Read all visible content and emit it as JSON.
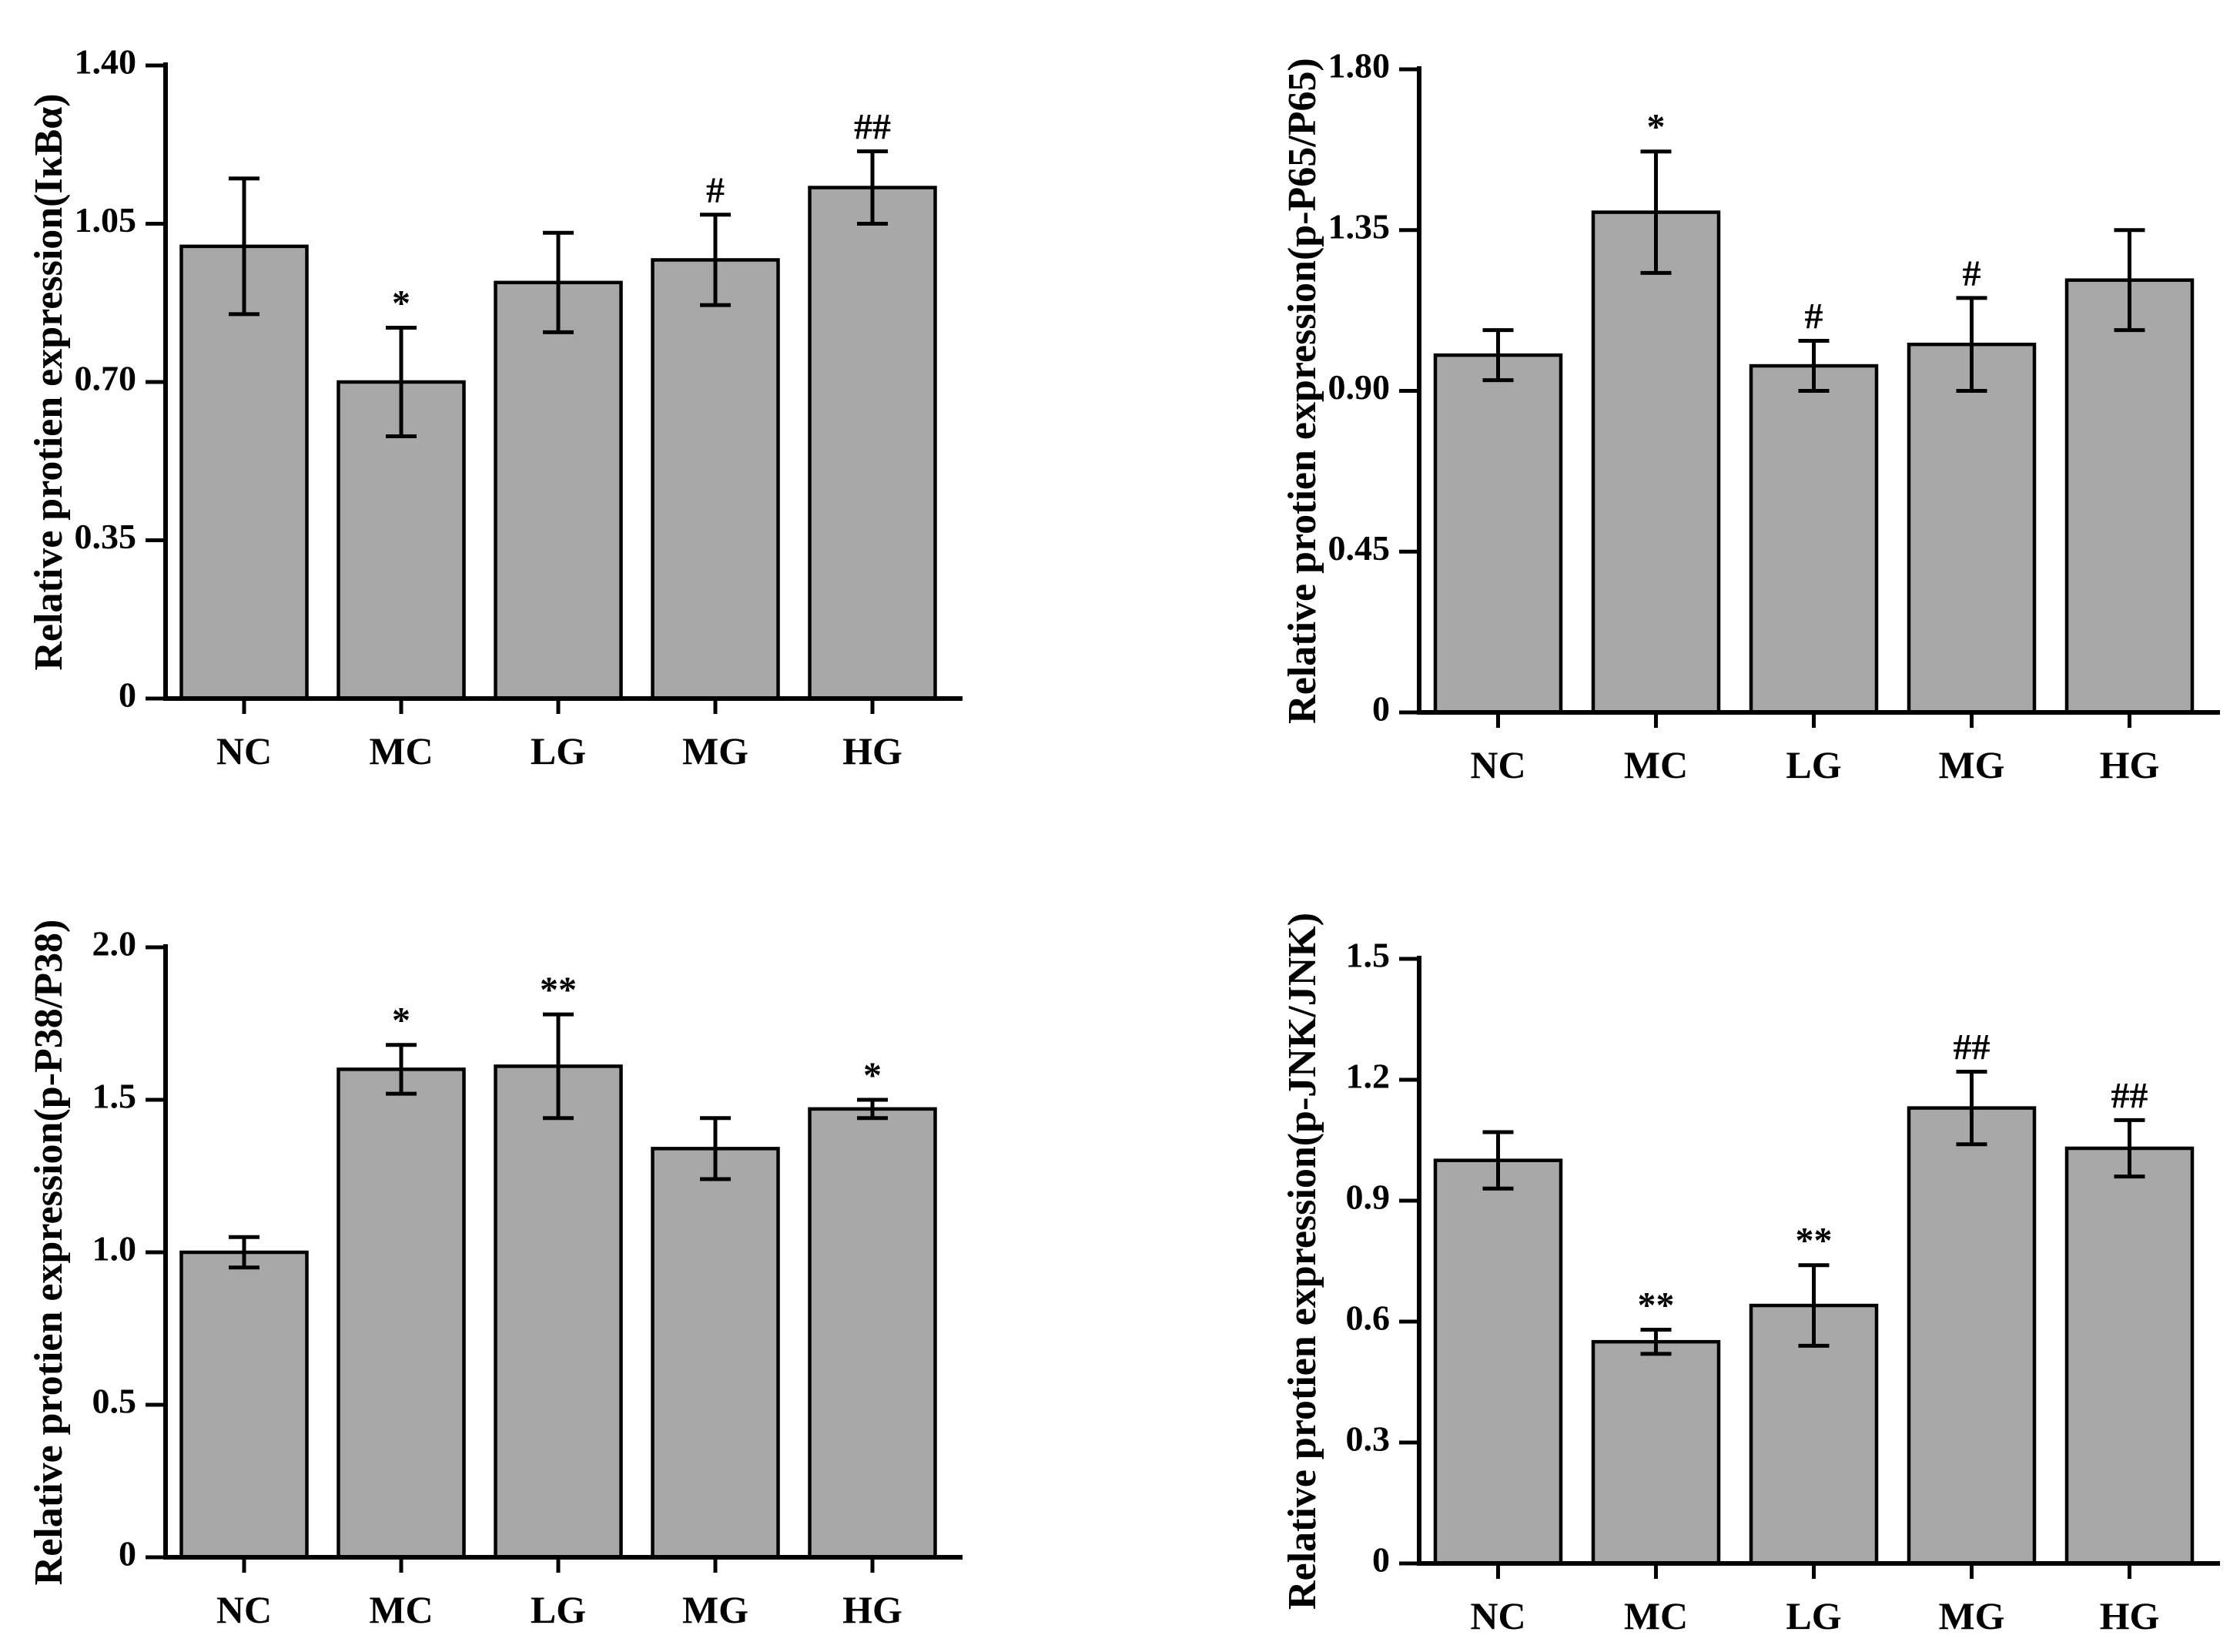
{
  "figure": {
    "background": "#ffffff",
    "bar_fill": "#a8a8a8",
    "bar_stroke": "#000000",
    "axis_color": "#000000"
  },
  "chart_data": [
    {
      "type": "bar",
      "panel_id": "ikba",
      "title": "",
      "ylabel": "Relative protien expression(IκBα)",
      "xlabel": "",
      "categories": [
        "NC",
        "MC",
        "LG",
        "MG",
        "HG"
      ],
      "values": [
        1.0,
        0.7,
        0.92,
        0.97,
        1.13
      ],
      "errors": [
        0.15,
        0.12,
        0.11,
        0.1,
        0.08
      ],
      "annotations": [
        "",
        "*",
        "",
        "#",
        "##"
      ],
      "ylim": [
        0,
        1.4
      ],
      "yticks": [
        0,
        0.35,
        0.7,
        1.05,
        1.4
      ],
      "ytick_labels": [
        "0",
        "0.35",
        "0.70",
        "1.05",
        "1.40"
      ],
      "grid": false,
      "legend": "none",
      "bar_color": "#a8a8a8"
    },
    {
      "type": "bar",
      "panel_id": "p65",
      "title": "",
      "ylabel": "Relative protien expression(p-P65/P65)",
      "xlabel": "",
      "categories": [
        "NC",
        "MC",
        "LG",
        "MG",
        "HG"
      ],
      "values": [
        1.0,
        1.4,
        0.97,
        1.03,
        1.21
      ],
      "errors": [
        0.07,
        0.17,
        0.07,
        0.13,
        0.14
      ],
      "annotations": [
        "",
        "*",
        "#",
        "#",
        ""
      ],
      "ylim": [
        0,
        1.8
      ],
      "yticks": [
        0,
        0.45,
        0.9,
        1.35,
        1.8
      ],
      "ytick_labels": [
        "0",
        "0.45",
        "0.90",
        "1.35",
        "1.80"
      ],
      "grid": false,
      "legend": "none",
      "bar_color": "#a8a8a8"
    },
    {
      "type": "bar",
      "panel_id": "p38",
      "title": "",
      "ylabel": "Relative protien expression(p-P38/P38)",
      "xlabel": "",
      "categories": [
        "NC",
        "MC",
        "LG",
        "MG",
        "HG"
      ],
      "values": [
        1.0,
        1.6,
        1.61,
        1.34,
        1.47
      ],
      "errors": [
        0.05,
        0.08,
        0.17,
        0.1,
        0.03
      ],
      "annotations": [
        "",
        "*",
        "**",
        "",
        "*"
      ],
      "ylim": [
        0,
        2.0
      ],
      "yticks": [
        0,
        0.5,
        1.0,
        1.5,
        2.0
      ],
      "ytick_labels": [
        "0",
        "0.5",
        "1.0",
        "1.5",
        "2.0"
      ],
      "grid": false,
      "legend": "none",
      "bar_color": "#a8a8a8"
    },
    {
      "type": "bar",
      "panel_id": "jnk",
      "title": "",
      "ylabel": "Relative protien expression(p-JNK/JNK)",
      "xlabel": "",
      "categories": [
        "NC",
        "MC",
        "LG",
        "MG",
        "HG"
      ],
      "values": [
        1.0,
        0.55,
        0.64,
        1.13,
        1.03
      ],
      "errors": [
        0.07,
        0.03,
        0.1,
        0.09,
        0.07
      ],
      "annotations": [
        "",
        "**",
        "**",
        "##",
        "##"
      ],
      "ylim": [
        0,
        1.5
      ],
      "yticks": [
        0,
        0.3,
        0.6,
        0.9,
        1.2,
        1.5
      ],
      "ytick_labels": [
        "0",
        "0.3",
        "0.6",
        "0.9",
        "1.2",
        "1.5"
      ],
      "grid": false,
      "legend": "none",
      "bar_color": "#a8a8a8"
    }
  ]
}
